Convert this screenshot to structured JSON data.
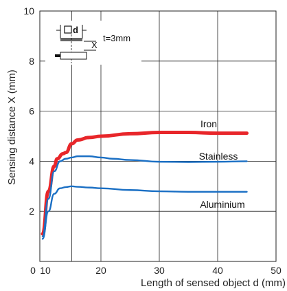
{
  "chart_data": {
    "type": "line",
    "xlabel": "Length of sensed object d (mm)",
    "ylabel": "Sensing distance X (mm)",
    "xlim": [
      0,
      50
    ],
    "ylim": [
      0,
      10
    ],
    "x_ticks": [
      "0",
      "10",
      "20",
      "30",
      "40",
      "50"
    ],
    "y_ticks": [
      "2",
      "4",
      "6",
      "8",
      "10"
    ],
    "grid": true,
    "inset": {
      "label_d": "d",
      "label_x": "X",
      "thickness": "t=3mm"
    },
    "series": [
      {
        "name": "Iron",
        "color": "#e8262a",
        "x": [
          10,
          11,
          12,
          12.5,
          13.5,
          14,
          15,
          16,
          18,
          20,
          25,
          30,
          35,
          40,
          45
        ],
        "y": [
          1.1,
          2.8,
          3.8,
          4.1,
          4.3,
          4.35,
          4.7,
          4.85,
          4.95,
          5.0,
          5.1,
          5.15,
          5.15,
          5.12,
          5.12
        ]
      },
      {
        "name": "Stainless",
        "color": "#1a6fc4",
        "x": [
          10,
          11,
          12,
          13,
          14,
          15,
          16,
          17,
          18,
          20,
          22,
          25,
          30,
          35,
          40,
          45
        ],
        "y": [
          1.0,
          2.5,
          3.6,
          4.0,
          4.1,
          4.15,
          4.2,
          4.2,
          4.2,
          4.15,
          4.1,
          4.05,
          3.98,
          3.97,
          3.98,
          4.0
        ]
      },
      {
        "name": "Aluminium",
        "color": "#1a6fc4",
        "x": [
          10,
          11,
          12,
          13,
          14,
          15,
          16,
          18,
          20,
          25,
          30,
          35,
          40,
          45
        ],
        "y": [
          0.9,
          2.0,
          2.7,
          2.92,
          2.97,
          3.0,
          2.98,
          2.95,
          2.92,
          2.85,
          2.8,
          2.78,
          2.78,
          2.78
        ]
      }
    ]
  }
}
